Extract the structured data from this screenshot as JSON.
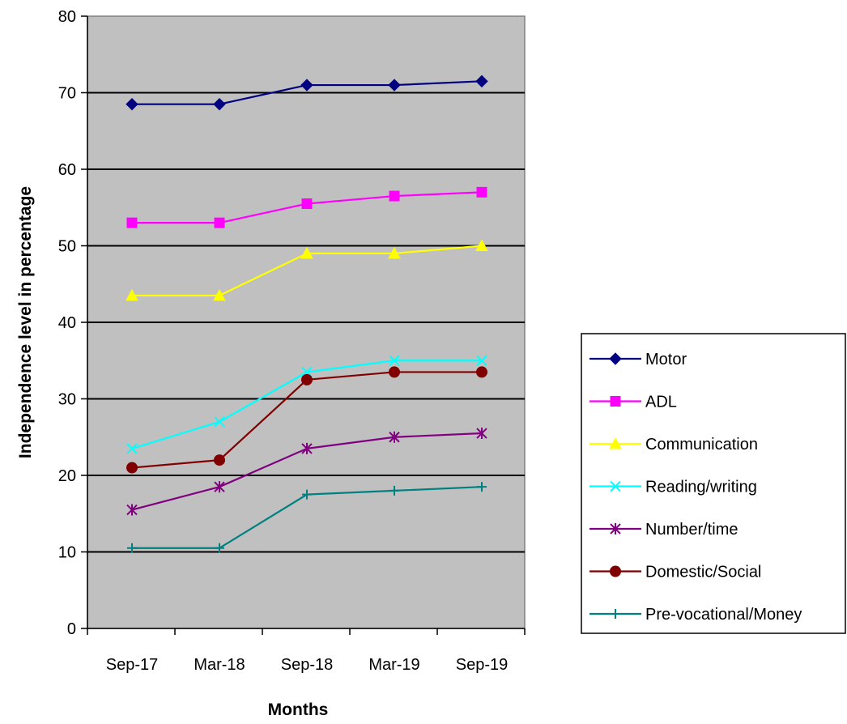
{
  "chart_data": {
    "type": "line",
    "title": "",
    "xlabel": "Months",
    "ylabel": "Independence level in percentage",
    "categories": [
      "Sep-17",
      "Mar-18",
      "Sep-18",
      "Mar-19",
      "Sep-19"
    ],
    "ylim": [
      0,
      80
    ],
    "yticks": [
      "0",
      "10",
      "20",
      "30",
      "40",
      "50",
      "60",
      "70",
      "80"
    ],
    "grid": true,
    "plot_background": "#c0c0c0",
    "legend_position": "right",
    "series": [
      {
        "name": "Motor",
        "color": "#000080",
        "marker": "diamond",
        "values": [
          68.5,
          68.5,
          71,
          71,
          71.5
        ]
      },
      {
        "name": "ADL",
        "color": "#ff00ff",
        "marker": "square",
        "values": [
          53,
          53,
          55.5,
          56.5,
          57
        ]
      },
      {
        "name": "Communication",
        "color": "#ffff00",
        "marker": "triangle",
        "values": [
          43.5,
          43.5,
          49,
          49,
          50
        ]
      },
      {
        "name": "Reading/writing",
        "color": "#00ffff",
        "marker": "x",
        "values": [
          23.5,
          27,
          33.5,
          35,
          35
        ]
      },
      {
        "name": "Number/time",
        "color": "#800080",
        "marker": "star",
        "values": [
          15.5,
          18.5,
          23.5,
          25,
          25.5
        ]
      },
      {
        "name": "Domestic/Social",
        "color": "#800000",
        "marker": "circle",
        "values": [
          21,
          22,
          32.5,
          33.5,
          33.5
        ]
      },
      {
        "name": "Pre-vocational/Money",
        "color": "#008080",
        "marker": "plus",
        "values": [
          10.5,
          10.5,
          17.5,
          18,
          18.5
        ]
      }
    ]
  }
}
